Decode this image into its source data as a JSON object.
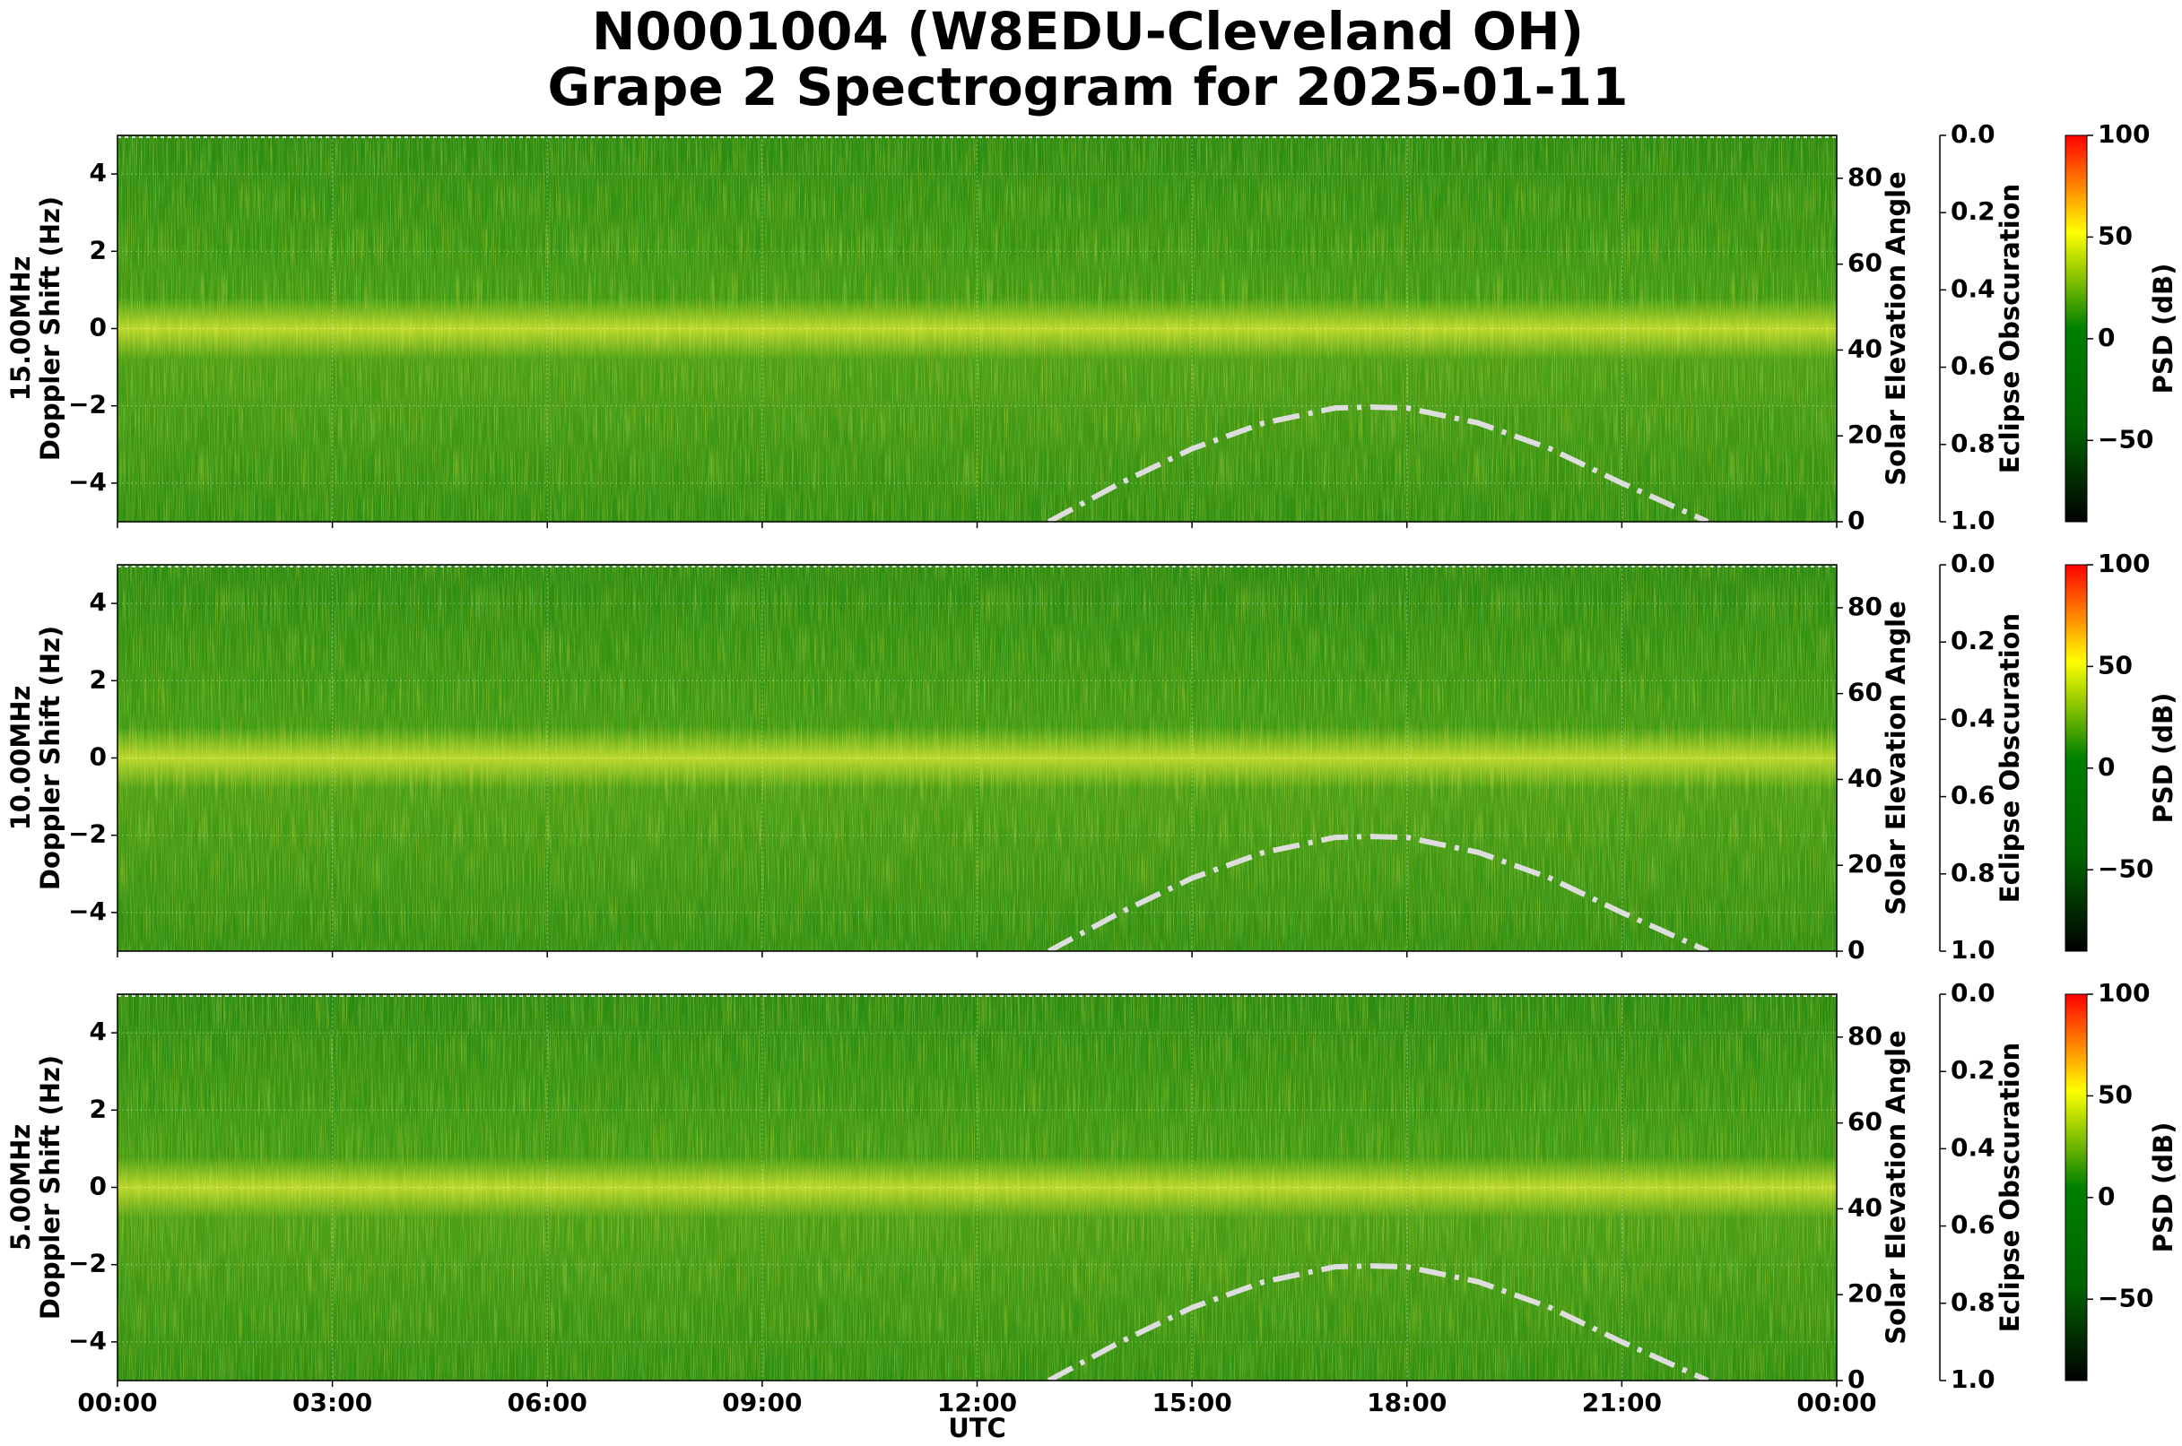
{
  "title_lines": [
    "N0001004 (W8EDU-Cleveland OH)",
    "Grape 2 Spectrogram for 2025-01-11"
  ],
  "x_axis": {
    "xlim": [
      0,
      24
    ],
    "xticks": [
      {
        "value": 0,
        "label": "00:00"
      },
      {
        "value": 3,
        "label": "03:00"
      },
      {
        "value": 6,
        "label": "06:00"
      },
      {
        "value": 9,
        "label": "09:00"
      },
      {
        "value": 12,
        "label": "12:00"
      },
      {
        "value": 15,
        "label": "15:00"
      },
      {
        "value": 18,
        "label": "18:00"
      },
      {
        "value": 21,
        "label": "21:00"
      },
      {
        "value": 24,
        "label": "00:00"
      }
    ],
    "xlabel": "UTC"
  },
  "chart_data": [
    {
      "type": "spectrogram",
      "ylabel_lines": [
        "15.00MHz",
        "Doppler Shift (Hz)"
      ],
      "ylim": [
        -5,
        5
      ],
      "yticks": [
        {
          "value": -4,
          "label": "−4"
        },
        {
          "value": -2,
          "label": "−2"
        },
        0,
        2,
        4
      ],
      "grid": true,
      "y2label": "Solar Elevation Angle",
      "y2lim": [
        0,
        90
      ],
      "y2ticks": [
        0,
        20,
        40,
        60,
        80
      ],
      "y3label": "Eclipse Obscuration",
      "y3lim": [
        1,
        0
      ],
      "y3ticks": [
        {
          "value": 0,
          "label": "0.0"
        },
        0.2,
        0.4,
        0.6,
        0.8,
        {
          "value": 1,
          "label": "1.0"
        }
      ],
      "series": [
        {
          "color": "#dddddd",
          "axis": "y2",
          "x": [
            13,
            14,
            15,
            16,
            17,
            17.5,
            18,
            19,
            20,
            21,
            22.2
          ],
          "values": [
            0,
            9,
            17,
            23,
            26.5,
            26.7,
            26.5,
            23,
            17,
            9,
            0
          ]
        }
      ],
      "colorbar": {
        "label": "PSD (dB)",
        "lim": [
          -90,
          100
        ],
        "ticks": [
          {
            "value": -50,
            "label": "−50"
          },
          0,
          50,
          100
        ],
        "colors": [
          "#000000",
          "#006400",
          "#008000",
          "#ffff00",
          "#ff0000"
        ]
      }
    },
    {
      "type": "spectrogram",
      "ylabel_lines": [
        "10.00MHz",
        "Doppler Shift (Hz)"
      ],
      "ylim": [
        -5,
        5
      ],
      "yticks": [
        {
          "value": -4,
          "label": "−4"
        },
        {
          "value": -2,
          "label": "−2"
        },
        0,
        2,
        4
      ],
      "grid": true,
      "y2label": "Solar Elevation Angle",
      "y2lim": [
        0,
        90
      ],
      "y2ticks": [
        0,
        20,
        40,
        60,
        80
      ],
      "y3label": "Eclipse Obscuration",
      "y3lim": [
        1,
        0
      ],
      "y3ticks": [
        {
          "value": 0,
          "label": "0.0"
        },
        0.2,
        0.4,
        0.6,
        0.8,
        {
          "value": 1,
          "label": "1.0"
        }
      ],
      "series": [
        {
          "color": "#dddddd",
          "axis": "y2",
          "x": [
            13,
            14,
            15,
            16,
            17,
            17.5,
            18,
            19,
            20,
            21,
            22.2
          ],
          "values": [
            0,
            9,
            17,
            23,
            26.5,
            26.7,
            26.5,
            23,
            17,
            9,
            0
          ]
        }
      ],
      "colorbar": {
        "label": "PSD (dB)",
        "lim": [
          -90,
          100
        ],
        "ticks": [
          {
            "value": -50,
            "label": "−50"
          },
          0,
          50,
          100
        ],
        "colors": [
          "#000000",
          "#006400",
          "#008000",
          "#ffff00",
          "#ff0000"
        ]
      }
    },
    {
      "type": "spectrogram",
      "ylabel_lines": [
        "5.00MHz",
        "Doppler Shift (Hz)"
      ],
      "ylim": [
        -5,
        5
      ],
      "yticks": [
        {
          "value": -4,
          "label": "−4"
        },
        {
          "value": -2,
          "label": "−2"
        },
        0,
        2,
        4
      ],
      "grid": true,
      "y2label": "Solar Elevation Angle",
      "y2lim": [
        0,
        90
      ],
      "y2ticks": [
        0,
        20,
        40,
        60,
        80
      ],
      "y3label": "Eclipse Obscuration",
      "y3lim": [
        1,
        0
      ],
      "y3ticks": [
        {
          "value": 0,
          "label": "0.0"
        },
        0.2,
        0.4,
        0.6,
        0.8,
        {
          "value": 1,
          "label": "1.0"
        }
      ],
      "series": [
        {
          "color": "#dddddd",
          "axis": "y2",
          "x": [
            13,
            14,
            15,
            16,
            17,
            17.5,
            18,
            19,
            20,
            21,
            22.2
          ],
          "values": [
            0,
            9,
            17,
            23,
            26.5,
            26.7,
            26.5,
            23,
            17,
            9,
            0
          ]
        }
      ],
      "colorbar": {
        "label": "PSD (dB)",
        "lim": [
          -90,
          100
        ],
        "ticks": [
          {
            "value": -50,
            "label": "−50"
          },
          0,
          50,
          100
        ],
        "colors": [
          "#000000",
          "#006400",
          "#008000",
          "#ffff00",
          "#ff0000"
        ]
      }
    }
  ]
}
